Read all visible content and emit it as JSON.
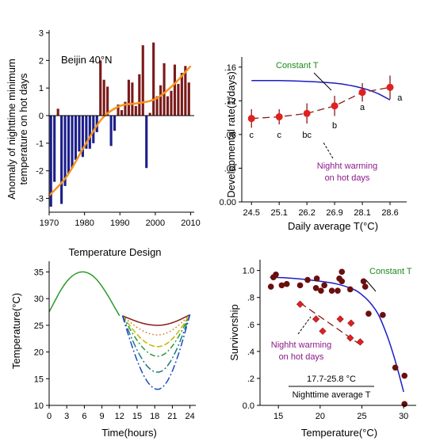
{
  "chart_data": [
    {
      "type": "bar",
      "panel": "top-left",
      "annotation": "Beijin 40°N",
      "ylabel_lines": [
        "Anomaly of nighttime minimum",
        "temperature on hot days"
      ],
      "xlim": [
        1970,
        2011
      ],
      "ylim": [
        -3.5,
        3.1
      ],
      "xticks": [
        1970,
        1980,
        1990,
        2000,
        2010
      ],
      "yticks": [
        -3,
        -2,
        -1,
        0,
        1,
        2,
        3
      ],
      "ytick_labels": [
        "-3",
        "-2",
        "-1",
        "0",
        "1",
        "2",
        "3"
      ],
      "colors": {
        "positive": "#7b1a1a",
        "negative": "#1c1f8a",
        "trend": "#f7941d"
      },
      "years": [
        1970,
        1971,
        1972,
        1973,
        1974,
        1975,
        1976,
        1977,
        1978,
        1979,
        1980,
        1981,
        1982,
        1983,
        1984,
        1985,
        1986,
        1987,
        1988,
        1989,
        1990,
        1991,
        1992,
        1993,
        1994,
        1995,
        1996,
        1997,
        1998,
        1999,
        2000,
        2001,
        2002,
        2003,
        2004,
        2005,
        2006,
        2007,
        2008,
        2009
      ],
      "values": [
        -3.3,
        -2.4,
        0.25,
        -3.2,
        -2.55,
        -2.1,
        -1.9,
        -1.6,
        -1.3,
        -1.5,
        -1.2,
        -1.2,
        -1.0,
        -0.6,
        2.0,
        1.3,
        1.05,
        -1.1,
        -0.55,
        0.4,
        0.2,
        0.5,
        1.3,
        1.2,
        0.35,
        1.5,
        2.55,
        -1.9,
        0.1,
        2.65,
        0.7,
        1.1,
        1.9,
        0.7,
        0.9,
        1.85,
        1.15,
        1.55,
        1.8,
        1.2
      ],
      "trend": {
        "x": [
          1970,
          1975,
          1980,
          1985,
          1990,
          1995,
          2000,
          2005,
          2010
        ],
        "y": [
          -2.9,
          -2.2,
          -1.1,
          -0.1,
          0.35,
          0.45,
          0.6,
          1.1,
          1.8
        ]
      }
    },
    {
      "type": "line",
      "panel": "top-right",
      "ylabel": "Developmental rate(1/days)",
      "xlabel": "Daily average T(°C)",
      "ylim": [
        0.0,
        0.172
      ],
      "yticks": [
        0.0,
        0.04,
        0.08,
        0.12,
        0.16
      ],
      "ytick_labels": [
        "0.00",
        ".04",
        ".08",
        ".12",
        ".16"
      ],
      "xticks_pos": [
        0,
        1,
        2,
        3,
        4,
        5
      ],
      "xtick_labels": [
        "24.5",
        "25.1",
        "26.2",
        "26.9",
        "28.1",
        "28.6"
      ],
      "xlim": [
        -0.35,
        5.6
      ],
      "series": [
        {
          "name": "Constant T",
          "color": "#1c1cc8",
          "x": [
            0,
            1,
            2,
            3,
            3.6,
            4,
            4.3,
            4.6,
            5
          ],
          "y": [
            0.144,
            0.144,
            0.143,
            0.141,
            0.138,
            0.135,
            0.132,
            0.128,
            0.121
          ]
        },
        {
          "name": "Nighht warming on hot days",
          "color": "#8b1a1a",
          "x": [
            0,
            1,
            2,
            3,
            4,
            5
          ],
          "y": [
            0.099,
            0.101,
            0.105,
            0.114,
            0.13,
            0.136
          ],
          "err": [
            0.011,
            0.009,
            0.012,
            0.012,
            0.011,
            0.014
          ],
          "markers": "#e02020"
        }
      ],
      "labels_text": [
        "c",
        "c",
        "bc",
        "b",
        "a",
        "a"
      ],
      "labels_pos": [
        [
          0,
          0.08
        ],
        [
          1,
          0.08
        ],
        [
          2,
          0.08
        ],
        [
          3,
          0.091
        ],
        [
          4,
          0.113
        ],
        [
          5.35,
          0.124
        ]
      ],
      "legend_constant": "Constant T",
      "legend_night_lines": [
        "Nighht warming",
        "on hot days"
      ],
      "legend_colors": {
        "constant": "#1a8a1a",
        "night": "#8a1a8a"
      }
    },
    {
      "type": "line",
      "panel": "bottom-left",
      "title": "Temperature Design",
      "ylabel": "Temperature(°C)",
      "xlabel": "Time(hours)",
      "xlim": [
        0,
        25
      ],
      "ylim": [
        10,
        37
      ],
      "xticks": [
        0,
        3,
        6,
        9,
        12,
        15,
        18,
        21,
        24
      ],
      "yticks": [
        10,
        15,
        20,
        25,
        30,
        35
      ],
      "shared_curve": {
        "color": "#2a9a2a",
        "x": [
          0,
          1,
          2,
          3,
          4,
          5,
          6,
          7,
          8,
          9,
          10,
          11,
          12
        ],
        "y": [
          27.5,
          29.6,
          31.6,
          33.2,
          34.3,
          34.9,
          35.0,
          34.6,
          33.7,
          32.3,
          30.6,
          28.7,
          26.8
        ]
      },
      "night_curves": [
        {
          "min": 25.0,
          "color": "#8b1a1a",
          "dash": ""
        },
        {
          "min": 23.2,
          "color": "#d07a10",
          "dash": "1.5 3"
        },
        {
          "min": 21.0,
          "color": "#c8b400",
          "dash": "7 3"
        },
        {
          "min": 19.2,
          "color": "#2a9a3a",
          "dash": "7 3 2 3"
        },
        {
          "min": 16.2,
          "color": "#1a7a80",
          "dash": "9 3 2 3"
        },
        {
          "min": 13.0,
          "color": "#1a4ac8",
          "dash": "9 3 2 3"
        }
      ],
      "night_endpoint": {
        "x0": 12.5,
        "y0": 26.8,
        "x1": 24,
        "y1": 27.0,
        "xmin": 18.5
      }
    },
    {
      "type": "scatter",
      "panel": "bottom-right",
      "ylabel": "Survivorship",
      "xlabel": "Temperature(°C)",
      "xlim": [
        12.8,
        31.5
      ],
      "ylim": [
        0.0,
        1.08
      ],
      "xticks": [
        15,
        20,
        25,
        30
      ],
      "yticks": [
        0.0,
        0.2,
        0.4,
        0.6,
        0.8,
        1.0
      ],
      "ytick_labels": [
        "0.0",
        ".2",
        ".4",
        ".6",
        ".8",
        "1.0"
      ],
      "constant_points": {
        "color": "#6a0e0e",
        "x": [
          14.1,
          14.4,
          14.7,
          15.4,
          16.0,
          17.6,
          18.5,
          19.5,
          19.6,
          20.1,
          20.5,
          21.4,
          22.1,
          22.3,
          22.6,
          22.6,
          23.6,
          25.2,
          25.4,
          25.8,
          27.5,
          29.0,
          30.1,
          30.1
        ],
        "y": [
          0.88,
          0.95,
          0.97,
          0.89,
          0.9,
          0.89,
          0.93,
          0.87,
          0.94,
          0.85,
          0.89,
          0.85,
          0.85,
          0.94,
          0.92,
          0.99,
          0.86,
          0.92,
          0.88,
          0.68,
          0.67,
          0.28,
          0.22,
          0.01
        ]
      },
      "constant_fit": {
        "color": "#1c1cc8",
        "x": [
          14,
          16,
          18,
          20,
          22,
          24,
          25,
          26,
          27,
          28,
          28.8,
          29.4,
          30.0
        ],
        "y": [
          0.95,
          0.945,
          0.935,
          0.92,
          0.9,
          0.86,
          0.82,
          0.76,
          0.67,
          0.52,
          0.37,
          0.24,
          0.1
        ]
      },
      "night_points": {
        "color": "#e02020",
        "x": [
          17.6,
          19.5,
          20.3,
          22.4,
          23.6,
          23.7,
          24.8
        ],
        "y": [
          0.75,
          0.64,
          0.55,
          0.64,
          0.5,
          0.61,
          0.47
        ]
      },
      "night_fit": {
        "color": "#8b1a1a",
        "x": [
          17.6,
          24.8
        ],
        "y": [
          0.76,
          0.45
        ]
      },
      "legend_constant": "Constant T",
      "legend_night_lines": [
        "Nighht warming",
        "on hot days"
      ],
      "range_label": "17.7-25.8 °C",
      "range_sublabel": "Nighttime average T",
      "legend_colors": {
        "constant": "#1a8a1a",
        "night": "#8a1a8a"
      }
    }
  ]
}
